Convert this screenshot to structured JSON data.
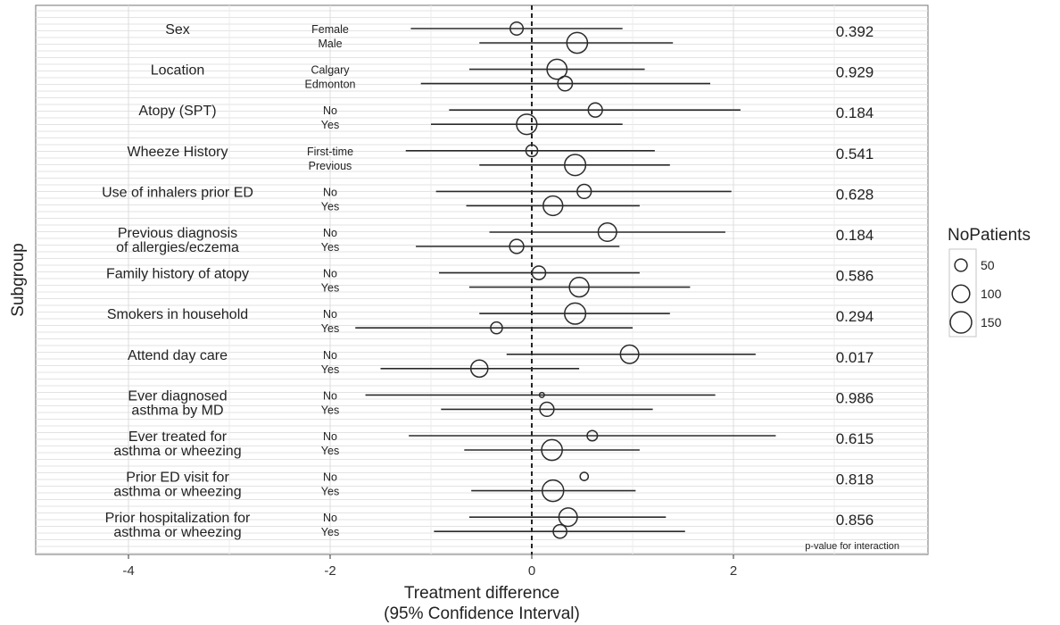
{
  "chart_data": {
    "type": "scatter",
    "subtype": "forest-plot",
    "title": "",
    "xlabel_line1": "Treatment difference",
    "xlabel_line2": "(95% Confidence Interval)",
    "ylabel": "Subgroup",
    "xlim": [
      -4.8,
      3.9
    ],
    "x_ticks": [
      -4,
      -2,
      0,
      2
    ],
    "reference_line": 0,
    "grid": true,
    "p_value_note": "p-value for interaction",
    "legend": {
      "title": "NoPatients",
      "position": "right",
      "entries": [
        {
          "label": "50",
          "size": 50
        },
        {
          "label": "100",
          "size": 100
        },
        {
          "label": "150",
          "size": 150
        }
      ]
    },
    "subgroups": [
      {
        "label_lines": [
          "Sex"
        ],
        "p_value": "0.392",
        "levels": [
          {
            "name": "Female",
            "estimate": -0.15,
            "lower": -1.2,
            "upper": 0.9,
            "n": 55
          },
          {
            "name": "Male",
            "estimate": 0.45,
            "lower": -0.52,
            "upper": 1.4,
            "n": 140
          }
        ]
      },
      {
        "label_lines": [
          "Location"
        ],
        "p_value": "0.929",
        "levels": [
          {
            "name": "Calgary",
            "estimate": 0.25,
            "lower": -0.62,
            "upper": 1.12,
            "n": 130
          },
          {
            "name": "Edmonton",
            "estimate": 0.33,
            "lower": -1.1,
            "upper": 1.77,
            "n": 70
          }
        ]
      },
      {
        "label_lines": [
          "Atopy (SPT)"
        ],
        "p_value": "0.184",
        "levels": [
          {
            "name": "No",
            "estimate": 0.63,
            "lower": -0.82,
            "upper": 2.07,
            "n": 65
          },
          {
            "name": "Yes",
            "estimate": -0.05,
            "lower": -1.0,
            "upper": 0.9,
            "n": 135
          }
        ]
      },
      {
        "label_lines": [
          "Wheeze History"
        ],
        "p_value": "0.541",
        "levels": [
          {
            "name": "First-time",
            "estimate": 0.0,
            "lower": -1.25,
            "upper": 1.22,
            "n": 45
          },
          {
            "name": "Previous",
            "estimate": 0.43,
            "lower": -0.52,
            "upper": 1.37,
            "n": 145
          }
        ]
      },
      {
        "label_lines": [
          "Use of inhalers prior ED"
        ],
        "p_value": "0.628",
        "levels": [
          {
            "name": "No",
            "estimate": 0.52,
            "lower": -0.95,
            "upper": 1.98,
            "n": 65
          },
          {
            "name": "Yes",
            "estimate": 0.21,
            "lower": -0.65,
            "upper": 1.07,
            "n": 125
          }
        ]
      },
      {
        "label_lines": [
          "Previous diagnosis",
          "of allergies/eczema"
        ],
        "p_value": "0.184",
        "levels": [
          {
            "name": "No",
            "estimate": 0.75,
            "lower": -0.42,
            "upper": 1.92,
            "n": 110
          },
          {
            "name": "Yes",
            "estimate": -0.15,
            "lower": -1.15,
            "upper": 0.87,
            "n": 65
          }
        ]
      },
      {
        "label_lines": [
          "Family history of atopy"
        ],
        "p_value": "0.586",
        "levels": [
          {
            "name": "No",
            "estimate": 0.07,
            "lower": -0.92,
            "upper": 1.07,
            "n": 60
          },
          {
            "name": "Yes",
            "estimate": 0.47,
            "lower": -0.62,
            "upper": 1.57,
            "n": 125
          }
        ]
      },
      {
        "label_lines": [
          "Smokers in household"
        ],
        "p_value": "0.294",
        "levels": [
          {
            "name": "No",
            "estimate": 0.43,
            "lower": -0.52,
            "upper": 1.37,
            "n": 145
          },
          {
            "name": "Yes",
            "estimate": -0.35,
            "lower": -1.75,
            "upper": 1.0,
            "n": 45
          }
        ]
      },
      {
        "label_lines": [
          "Attend day care"
        ],
        "p_value": "0.017",
        "levels": [
          {
            "name": "No",
            "estimate": 0.97,
            "lower": -0.25,
            "upper": 2.22,
            "n": 110
          },
          {
            "name": "Yes",
            "estimate": -0.52,
            "lower": -1.5,
            "upper": 0.47,
            "n": 95
          }
        ]
      },
      {
        "label_lines": [
          "Ever diagnosed",
          "asthma by MD"
        ],
        "p_value": "0.986",
        "levels": [
          {
            "name": "No",
            "estimate": 0.1,
            "lower": -1.65,
            "upper": 1.82,
            "n": 8
          },
          {
            "name": "Yes",
            "estimate": 0.15,
            "lower": -0.9,
            "upper": 1.2,
            "n": 65
          }
        ]
      },
      {
        "label_lines": [
          "Ever treated for",
          "asthma or wheezing"
        ],
        "p_value": "0.615",
        "levels": [
          {
            "name": "No",
            "estimate": 0.6,
            "lower": -1.22,
            "upper": 2.42,
            "n": 35
          },
          {
            "name": "Yes",
            "estimate": 0.2,
            "lower": -0.67,
            "upper": 1.07,
            "n": 140
          }
        ]
      },
      {
        "label_lines": [
          "Prior ED visit for",
          "asthma or wheezing"
        ],
        "p_value": "0.818",
        "levels": [
          {
            "name": "No",
            "estimate": 0.52,
            "lower": 0.52,
            "upper": 0.52,
            "n": 22
          },
          {
            "name": "Yes",
            "estimate": 0.21,
            "lower": -0.6,
            "upper": 1.03,
            "n": 150
          }
        ]
      },
      {
        "label_lines": [
          "Prior hospitalization for",
          "asthma or wheezing"
        ],
        "p_value": "0.856",
        "levels": [
          {
            "name": "No",
            "estimate": 0.36,
            "lower": -0.62,
            "upper": 1.33,
            "n": 110
          },
          {
            "name": "Yes",
            "estimate": 0.28,
            "lower": -0.97,
            "upper": 1.52,
            "n": 60
          }
        ]
      }
    ]
  }
}
